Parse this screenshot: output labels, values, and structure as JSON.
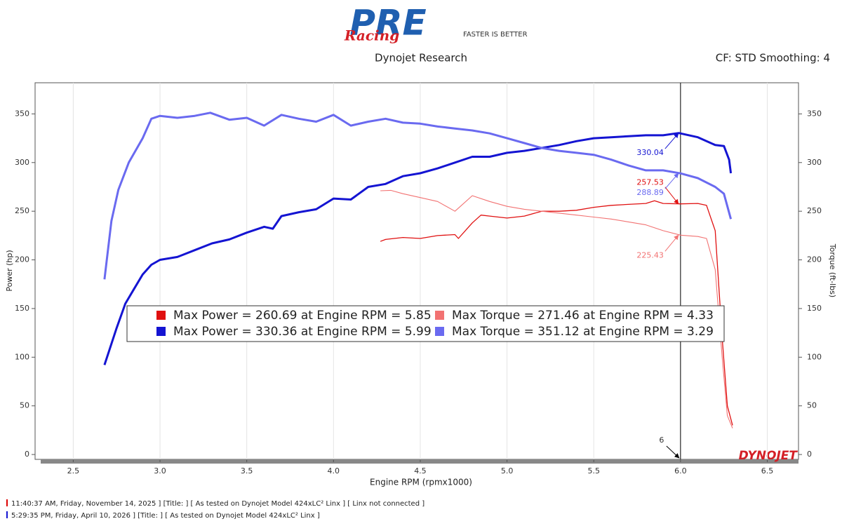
{
  "chart_data": {
    "type": "line",
    "logo": {
      "brand": "PRE",
      "script": "Racing",
      "tagline": "FASTER IS BETTER"
    },
    "title": "Dynojet Research",
    "subtitle": "CF: STD Smoothing: 4",
    "x_label": "Engine RPM (rpmx1000)",
    "y_label": "Power (hp)",
    "y2_label": "Torque (ft-lbs)",
    "brand_mark": "DYNOJET",
    "xlim": [
      2.28,
      6.68
    ],
    "xticks": [
      2.5,
      {
        "value": 3,
        "label": "3.0"
      },
      3.5,
      {
        "value": 4,
        "label": "4.0"
      },
      4.5,
      {
        "value": 5,
        "label": "5.0"
      },
      5.5,
      {
        "value": 6,
        "label": "6.0"
      },
      6.5
    ],
    "ylim": [
      -5,
      382
    ],
    "yticks": [
      0,
      50,
      100,
      150,
      200,
      250,
      300,
      350
    ],
    "y2lim": [
      -5,
      382
    ],
    "y2ticks": [
      0,
      50,
      100,
      150,
      200,
      250,
      300,
      350
    ],
    "grid": "x",
    "cursor_x": 6,
    "series": [
      {
        "name": "Max Power = 260.69 at Engine RPM = 5.85",
        "color": "#e01010",
        "width": 1.3,
        "cursor_value": 257.53,
        "x": [
          4.27,
          4.3,
          4.4,
          4.5,
          4.6,
          4.7,
          4.72,
          4.8,
          4.85,
          4.9,
          5.0,
          5.1,
          5.2,
          5.3,
          5.4,
          5.5,
          5.6,
          5.7,
          5.8,
          5.85,
          5.9,
          6.0,
          6.1,
          6.15,
          6.2,
          6.24,
          6.27,
          6.3
        ],
        "values": [
          219,
          221,
          223,
          222,
          225,
          226,
          222,
          238,
          246,
          245,
          243,
          245,
          250,
          250,
          251,
          254,
          256,
          257,
          258,
          260.69,
          258,
          257.53,
          258,
          256,
          230,
          120,
          50,
          30
        ]
      },
      {
        "name": "Max Torque = 271.46 at Engine RPM = 4.33",
        "color": "#f27272",
        "width": 1.1,
        "axis": "y2",
        "cursor_value": 225.43,
        "x": [
          4.27,
          4.33,
          4.4,
          4.5,
          4.6,
          4.7,
          4.8,
          4.9,
          5.0,
          5.1,
          5.2,
          5.3,
          5.4,
          5.5,
          5.6,
          5.7,
          5.8,
          5.9,
          6.0,
          6.1,
          6.15,
          6.2,
          6.24,
          6.27,
          6.3
        ],
        "values": [
          271,
          271.46,
          268,
          264,
          260,
          250,
          266,
          260,
          255,
          252,
          250,
          248,
          246,
          244,
          242,
          239,
          236,
          230,
          225.43,
          224,
          222,
          190,
          100,
          40,
          27
        ]
      },
      {
        "name": "Max Power = 330.36 at Engine RPM = 5.99",
        "color": "#1414d2",
        "width": 3,
        "cursor_value": 330.04,
        "x": [
          2.68,
          2.75,
          2.8,
          2.85,
          2.9,
          2.95,
          3.0,
          3.1,
          3.2,
          3.3,
          3.4,
          3.5,
          3.6,
          3.65,
          3.7,
          3.8,
          3.9,
          4.0,
          4.1,
          4.2,
          4.3,
          4.4,
          4.5,
          4.6,
          4.7,
          4.8,
          4.9,
          5.0,
          5.1,
          5.2,
          5.3,
          5.4,
          5.5,
          5.6,
          5.7,
          5.8,
          5.9,
          5.99,
          6.1,
          6.2,
          6.25,
          6.28,
          6.29
        ],
        "values": [
          92,
          130,
          155,
          170,
          185,
          195,
          200,
          203,
          210,
          217,
          221,
          228,
          234,
          232,
          245,
          249,
          252,
          263,
          262,
          275,
          278,
          286,
          289,
          294,
          300,
          306,
          306,
          310,
          312,
          315,
          318,
          322,
          325,
          326,
          327,
          328,
          328,
          330.36,
          326,
          318,
          317,
          303,
          289
        ]
      },
      {
        "name": "Max Torque = 351.12 at Engine RPM = 3.29",
        "color": "#6a6af0",
        "width": 3,
        "axis": "y2",
        "cursor_value": 288.89,
        "x": [
          2.68,
          2.72,
          2.76,
          2.82,
          2.9,
          2.95,
          3.0,
          3.1,
          3.2,
          3.29,
          3.4,
          3.5,
          3.6,
          3.7,
          3.8,
          3.9,
          4.0,
          4.1,
          4.2,
          4.3,
          4.4,
          4.5,
          4.6,
          4.7,
          4.8,
          4.9,
          5.0,
          5.1,
          5.2,
          5.3,
          5.4,
          5.5,
          5.6,
          5.7,
          5.8,
          5.9,
          6.0,
          6.1,
          6.2,
          6.25,
          6.29
        ],
        "values": [
          180,
          240,
          272,
          300,
          325,
          345,
          348,
          346,
          348,
          351.12,
          344,
          346,
          338,
          349,
          345,
          342,
          349,
          338,
          342,
          345,
          341,
          340,
          337,
          335,
          333,
          330,
          325,
          320,
          315,
          312,
          310,
          308,
          303,
          297,
          292,
          292,
          288.89,
          284,
          275,
          268,
          242
        ]
      }
    ],
    "runs": [
      "11:40:37 AM, Friday, November 14, 2025 ] [Title: ] [ As tested on Dynojet Model 424xLC² Linx ] [ Linx not connected ]",
      "5:29:35 PM, Friday, April 10, 2026 ] [Title: ] [ As tested on Dynojet Model 424xLC² Linx ]"
    ]
  }
}
